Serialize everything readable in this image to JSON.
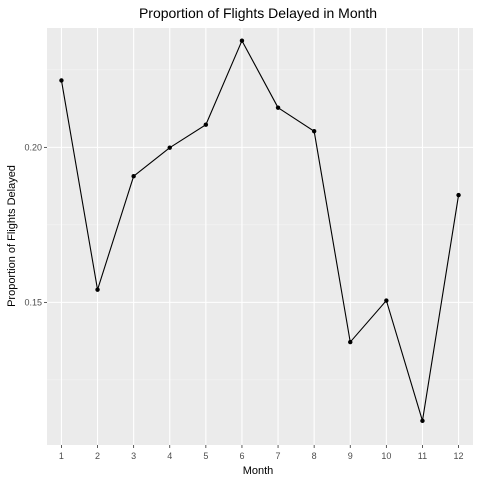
{
  "chart_data": {
    "type": "line",
    "title": "Proportion of Flights Delayed in Month",
    "xlabel": "Month",
    "ylabel": "Proportion of Flights Delayed",
    "x": [
      1,
      2,
      3,
      4,
      5,
      6,
      7,
      8,
      9,
      10,
      11,
      12
    ],
    "x_tick_labels": [
      "1",
      "2",
      "3",
      "4",
      "5",
      "6",
      "7",
      "8",
      "9",
      "10",
      "11",
      "12"
    ],
    "y_ticks": [
      0.15,
      0.2
    ],
    "y_tick_labels": [
      "0.15",
      "0.20"
    ],
    "series": [
      {
        "values": [
          0.2216,
          0.1541,
          0.1907,
          0.1999,
          0.2073,
          0.2344,
          0.2128,
          0.2052,
          0.1372,
          0.1506,
          0.1118,
          0.1846
        ]
      }
    ],
    "xlim": [
      0.6,
      12.4
    ],
    "ylim": [
      0.104,
      0.2385
    ],
    "grid": true,
    "legend": "none",
    "colors": {
      "panel_background": "#ebebeb",
      "grid_major": "#ffffff",
      "line": "#000000",
      "point": "#000000",
      "tick": "#333333"
    }
  }
}
